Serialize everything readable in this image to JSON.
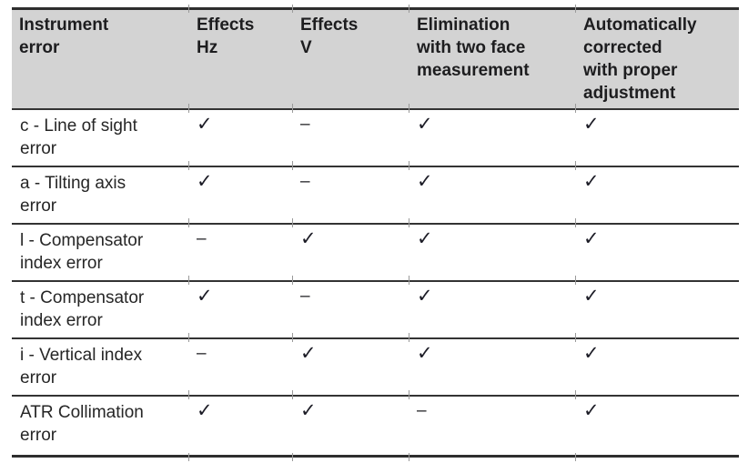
{
  "colors": {
    "header_bg": "#d3d3d3",
    "rule": "#2e2e2e",
    "column_tick": "#9a9a9a",
    "text": "#1d1d1f"
  },
  "symbols": {
    "check": "✓",
    "dash": "–"
  },
  "table": {
    "headers": [
      "Instrument\nerror",
      "Effects\nHz",
      "Effects\nV",
      "Elimination\nwith two face\nmeasurement",
      "Automatically\ncorrected\nwith proper\nadjustment"
    ],
    "rows": [
      {
        "label": "c - Line of sight\nerror",
        "cells": [
          "✓",
          "–",
          "✓",
          "✓"
        ]
      },
      {
        "label": "a - Tilting axis\nerror",
        "cells": [
          "✓",
          "–",
          "✓",
          "✓"
        ]
      },
      {
        "label": "l - Compensator\nindex error",
        "cells": [
          "–",
          "✓",
          "✓",
          "✓"
        ]
      },
      {
        "label": "t - Compensator\nindex error",
        "cells": [
          "✓",
          "–",
          "✓",
          "✓"
        ]
      },
      {
        "label": "i - Vertical index\nerror",
        "cells": [
          "–",
          "✓",
          "✓",
          "✓"
        ]
      },
      {
        "label": "ATR Collimation\nerror",
        "cells": [
          "✓",
          "✓",
          "–",
          "✓"
        ]
      }
    ]
  }
}
